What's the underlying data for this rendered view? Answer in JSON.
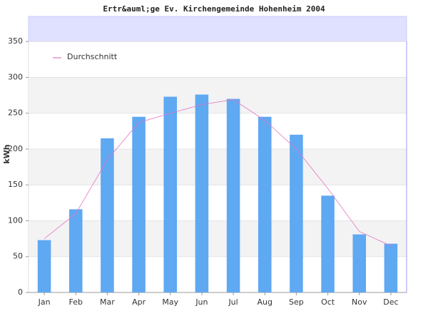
{
  "chart_data": {
    "type": "bar",
    "title": "Ertr&auml;ge Ev. Kirchengemeinde Hohenheim 2004",
    "ylabel": "kWh",
    "categories": [
      "Jan",
      "Feb",
      "Mar",
      "Apr",
      "May",
      "Jun",
      "Jul",
      "Aug",
      "Sep",
      "Oct",
      "Nov",
      "Dec"
    ],
    "values": [
      73,
      116,
      215,
      245,
      273,
      276,
      270,
      245,
      220,
      135,
      81,
      68
    ],
    "color": "#5fa8f2",
    "line": {
      "name": "Durchschnitt",
      "color": "#e377c2",
      "values": [
        75,
        110,
        185,
        237,
        250,
        262,
        269,
        240,
        200,
        145,
        85,
        65
      ]
    },
    "ylim": [
      0,
      385
    ],
    "yticks": [
      0,
      50,
      100,
      150,
      200,
      250,
      300,
      350
    ],
    "grid": true
  }
}
